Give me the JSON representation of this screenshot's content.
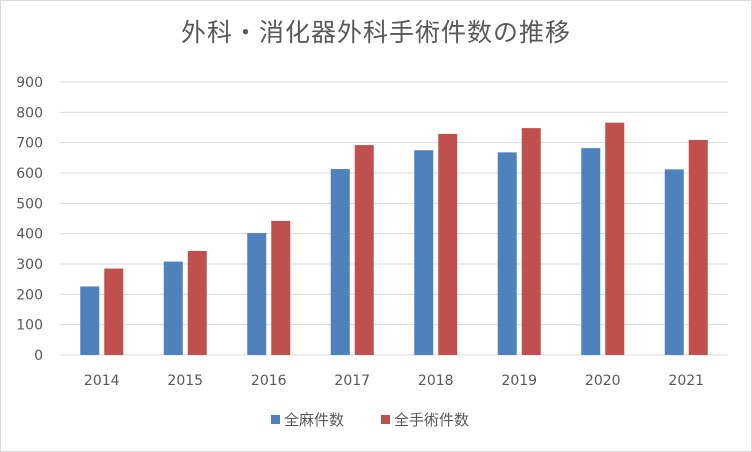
{
  "chart_data": {
    "type": "bar",
    "title": "外科・消化器外科手術件数の推移",
    "categories": [
      "2014",
      "2015",
      "2016",
      "2017",
      "2018",
      "2019",
      "2020",
      "2021"
    ],
    "series": [
      {
        "name": "全麻件数",
        "color": "#4f81bd",
        "values": [
          226,
          308,
          402,
          613,
          675,
          668,
          682,
          612
        ]
      },
      {
        "name": "全手術件数",
        "color": "#c0504d",
        "values": [
          285,
          343,
          442,
          692,
          729,
          748,
          766,
          709
        ]
      }
    ],
    "ylim": [
      0,
      900
    ],
    "yticks": [
      0,
      100,
      200,
      300,
      400,
      500,
      600,
      700,
      800,
      900
    ],
    "grid": true,
    "legend_position": "bottom"
  }
}
